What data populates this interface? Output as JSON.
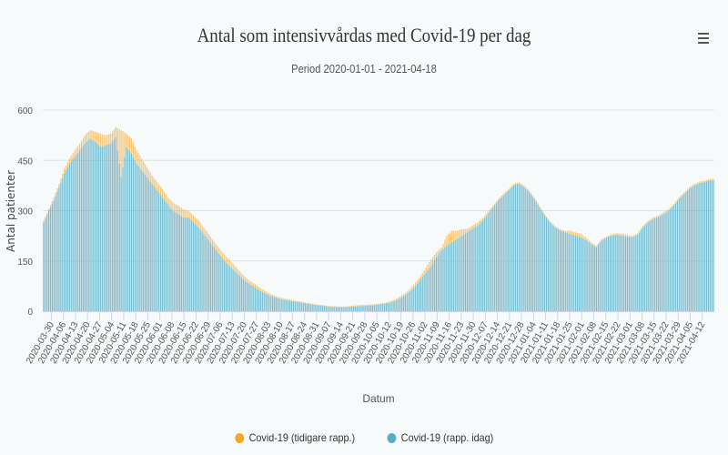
{
  "header": {
    "title": "Antal som intensivvårdas med Covid-19 per dag",
    "subtitle": "Period 2020-01-01 - 2021-04-18",
    "menu_icon": "hamburger-menu-icon"
  },
  "chart_data": {
    "type": "bar",
    "stacked": true,
    "title": "Antal som intensivvårdas med Covid-19 per dag",
    "subtitle": "Period 2020-01-01 - 2021-04-18",
    "xlabel": "Datum",
    "ylabel": "Antal patienter",
    "ylim": [
      0,
      600
    ],
    "yticks": [
      0,
      150,
      300,
      450,
      600
    ],
    "grid": true,
    "legend_position": "bottom-center",
    "x_start": "2020-03-25",
    "x_end": "2021-04-18",
    "sample_step_days": 3,
    "xtick_labels": [
      "2020-03-30",
      "2020-04-06",
      "2020-04-13",
      "2020-04-20",
      "2020-04-27",
      "2020-05-04",
      "2020-05-11",
      "2020-05-18",
      "2020-05-25",
      "2020-06-01",
      "2020-06-08",
      "2020-06-15",
      "2020-06-22",
      "2020-06-29",
      "2020-07-06",
      "2020-07-13",
      "2020-07-20",
      "2020-07-27",
      "2020-08-03",
      "2020-08-10",
      "2020-08-17",
      "2020-08-24",
      "2020-08-31",
      "2020-09-07",
      "2020-09-14",
      "2020-09-21",
      "2020-09-28",
      "2020-10-05",
      "2020-10-12",
      "2020-10-19",
      "2020-10-26",
      "2020-11-02",
      "2020-11-09",
      "2020-11-16",
      "2020-11-23",
      "2020-11-30",
      "2020-12-07",
      "2020-12-14",
      "2020-12-21",
      "2020-12-28",
      "2021-01-04",
      "2021-01-11",
      "2021-01-18",
      "2021-01-25",
      "2021-02-01",
      "2021-02-08",
      "2021-02-15",
      "2021-02-22",
      "2021-03-01",
      "2021-03-08",
      "2021-03-15",
      "2021-03-22",
      "2021-03-29",
      "2021-04-05",
      "2021-04-12"
    ],
    "series": [
      {
        "name": "Covid-19 (rapp. idag)",
        "color": "#5aaec4",
        "values": [
          265,
          300,
          330,
          370,
          410,
          440,
          460,
          480,
          500,
          515,
          505,
          490,
          495,
          500,
          520,
          400,
          490,
          470,
          440,
          420,
          400,
          380,
          360,
          340,
          320,
          300,
          290,
          280,
          280,
          265,
          250,
          230,
          210,
          190,
          170,
          150,
          135,
          120,
          105,
          90,
          80,
          70,
          60,
          52,
          45,
          40,
          36,
          33,
          30,
          28,
          25,
          22,
          20,
          18,
          16,
          14,
          13,
          12,
          12,
          13,
          14,
          15,
          16,
          17,
          18,
          20,
          22,
          25,
          30,
          38,
          48,
          60,
          75,
          95,
          115,
          135,
          160,
          180,
          195,
          205,
          215,
          225,
          235,
          245,
          255,
          270,
          290,
          310,
          330,
          345,
          360,
          375,
          380,
          370,
          355,
          335,
          310,
          285,
          265,
          250,
          240,
          235,
          230,
          225,
          220,
          212,
          200,
          190,
          210,
          220,
          225,
          228,
          225,
          222,
          220,
          228,
          250,
          265,
          275,
          280,
          290,
          300,
          315,
          335,
          350,
          365,
          375,
          382,
          385,
          390
        ]
      },
      {
        "name": "Covid-19 (tidigare rapp.)",
        "color": "#f5a623",
        "values": [
          5,
          5,
          10,
          10,
          15,
          15,
          20,
          20,
          25,
          25,
          30,
          40,
          30,
          30,
          30,
          140,
          40,
          45,
          40,
          35,
          30,
          25,
          25,
          25,
          20,
          25,
          25,
          25,
          20,
          20,
          20,
          20,
          20,
          18,
          18,
          18,
          16,
          15,
          14,
          12,
          10,
          10,
          9,
          8,
          6,
          5,
          4,
          4,
          3,
          3,
          3,
          3,
          3,
          2,
          2,
          2,
          2,
          2,
          2,
          2,
          3,
          3,
          3,
          3,
          3,
          3,
          3,
          4,
          5,
          6,
          6,
          8,
          10,
          10,
          15,
          20,
          15,
          10,
          30,
          35,
          25,
          20,
          10,
          10,
          10,
          8,
          6,
          5,
          5,
          5,
          5,
          5,
          5,
          5,
          5,
          4,
          4,
          4,
          4,
          4,
          4,
          5,
          10,
          10,
          10,
          8,
          6,
          5,
          5,
          3,
          5,
          5,
          6,
          5,
          5,
          5,
          5,
          5,
          5,
          5,
          5,
          5,
          5,
          5,
          5,
          5,
          5,
          5,
          5,
          5
        ]
      }
    ]
  },
  "axes": {
    "ylabel": "Antal patienter",
    "xlabel": "Datum",
    "yticks": [
      "0",
      "150",
      "300",
      "450",
      "600"
    ]
  },
  "legend": [
    {
      "label": "Covid-19 (tidigare rapp.)",
      "color": "#f5a623"
    },
    {
      "label": "Covid-19 (rapp. idag)",
      "color": "#5aaec4"
    }
  ]
}
